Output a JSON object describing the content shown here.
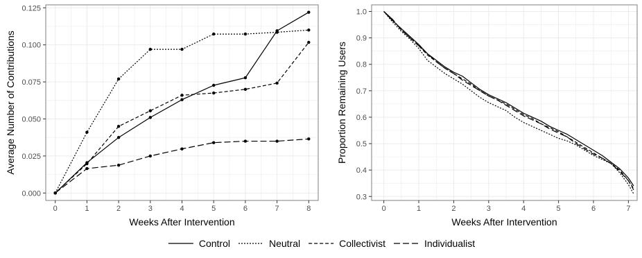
{
  "chart_data": [
    {
      "type": "line",
      "xlabel": "Weeks After Intervention",
      "ylabel": "Average Number of Contributions",
      "xlim": [
        -0.3,
        8.3
      ],
      "ylim": [
        -0.005,
        0.127
      ],
      "x_ticks": [
        0,
        1,
        2,
        3,
        4,
        5,
        6,
        7,
        8
      ],
      "x_tick_labels": [
        "0",
        "1",
        "2",
        "3",
        "4",
        "5",
        "6",
        "7",
        "8"
      ],
      "y_ticks": [
        0,
        0.025,
        0.05,
        0.075,
        0.1,
        0.125
      ],
      "y_tick_labels": [
        "0.000",
        "0.025",
        "0.050",
        "0.075",
        "0.100",
        "0.125"
      ],
      "grid": true,
      "markers": true,
      "x": [
        0,
        1,
        2,
        3,
        4,
        5,
        6,
        7,
        8
      ],
      "series": [
        {
          "name": "Control",
          "values": [
            0,
            0.0205,
            0.0375,
            0.051,
            0.063,
            0.0727,
            0.0778,
            0.1095,
            0.122
          ]
        },
        {
          "name": "Neutral",
          "values": [
            0,
            0.041,
            0.077,
            0.097,
            0.097,
            0.1073,
            0.1073,
            0.1085,
            0.11
          ]
        },
        {
          "name": "Collectivist",
          "values": [
            0,
            0.0198,
            0.045,
            0.0555,
            0.066,
            0.0675,
            0.07,
            0.0742,
            0.1017
          ]
        },
        {
          "name": "Individualist",
          "values": [
            0,
            0.0165,
            0.0188,
            0.025,
            0.0298,
            0.034,
            0.035,
            0.035,
            0.0365
          ]
        }
      ]
    },
    {
      "type": "line",
      "xlabel": "Weeks After Intervention",
      "ylabel": "Proportion Remaining Users",
      "xlim": [
        -0.35,
        7.25
      ],
      "ylim": [
        0.285,
        1.025
      ],
      "x_ticks": [
        0,
        1,
        2,
        3,
        4,
        5,
        6,
        7
      ],
      "x_tick_labels": [
        "0",
        "1",
        "2",
        "3",
        "4",
        "5",
        "6",
        "7"
      ],
      "y_ticks": [
        0.3,
        0.4,
        0.5,
        0.6,
        0.7,
        0.8,
        0.9,
        1.0
      ],
      "y_tick_labels": [
        "0.3",
        "0.4",
        "0.5",
        "0.6",
        "0.7",
        "0.8",
        "0.9",
        "1.0"
      ],
      "grid": true,
      "markers": false,
      "series": [
        {
          "name": "Control",
          "x": [
            0,
            0.25,
            0.5,
            0.75,
            1,
            1.25,
            1.5,
            1.75,
            2,
            2.25,
            2.5,
            2.75,
            3,
            3.25,
            3.5,
            3.75,
            4,
            4.25,
            4.5,
            4.75,
            5,
            5.25,
            5.5,
            5.75,
            6,
            6.25,
            6.5,
            6.75,
            7,
            7.15
          ],
          "values": [
            1.0,
            0.965,
            0.935,
            0.905,
            0.875,
            0.84,
            0.815,
            0.79,
            0.77,
            0.755,
            0.73,
            0.705,
            0.685,
            0.67,
            0.655,
            0.635,
            0.615,
            0.6,
            0.585,
            0.565,
            0.55,
            0.535,
            0.515,
            0.495,
            0.475,
            0.455,
            0.43,
            0.405,
            0.37,
            0.34
          ]
        },
        {
          "name": "Neutral",
          "x": [
            0,
            0.25,
            0.5,
            0.75,
            1,
            1.25,
            1.5,
            1.75,
            2,
            2.25,
            2.5,
            2.75,
            3,
            3.25,
            3.5,
            3.75,
            4,
            4.25,
            4.5,
            4.75,
            5,
            5.25,
            5.5,
            5.75,
            6,
            6.25,
            6.5,
            6.75,
            7,
            7.15
          ],
          "values": [
            1.0,
            0.96,
            0.925,
            0.895,
            0.86,
            0.815,
            0.79,
            0.765,
            0.745,
            0.725,
            0.7,
            0.675,
            0.655,
            0.64,
            0.625,
            0.6,
            0.58,
            0.565,
            0.55,
            0.535,
            0.52,
            0.51,
            0.495,
            0.475,
            0.455,
            0.44,
            0.425,
            0.39,
            0.345,
            0.31
          ]
        },
        {
          "name": "Collectivist",
          "x": [
            0,
            0.25,
            0.5,
            0.75,
            1,
            1.25,
            1.5,
            1.75,
            2,
            2.25,
            2.5,
            2.75,
            3,
            3.25,
            3.5,
            3.75,
            4,
            4.25,
            4.5,
            4.75,
            5,
            5.25,
            5.5,
            5.75,
            6,
            6.25,
            6.5,
            6.75,
            7,
            7.15
          ],
          "values": [
            1.0,
            0.97,
            0.93,
            0.9,
            0.87,
            0.835,
            0.81,
            0.785,
            0.765,
            0.745,
            0.725,
            0.7,
            0.68,
            0.665,
            0.65,
            0.63,
            0.61,
            0.595,
            0.575,
            0.56,
            0.545,
            0.525,
            0.505,
            0.485,
            0.465,
            0.445,
            0.425,
            0.4,
            0.36,
            0.33
          ]
        },
        {
          "name": "Individualist",
          "x": [
            0,
            0.25,
            0.5,
            0.75,
            1,
            1.25,
            1.5,
            1.75,
            2,
            2.25,
            2.5,
            2.75,
            3,
            3.25,
            3.5,
            3.75,
            4,
            4.25,
            4.5,
            4.75,
            5,
            5.25,
            5.5,
            5.75,
            6,
            6.25,
            6.5,
            6.75,
            7,
            7.15
          ],
          "values": [
            1.0,
            0.97,
            0.93,
            0.9,
            0.87,
            0.84,
            0.81,
            0.785,
            0.765,
            0.74,
            0.72,
            0.7,
            0.68,
            0.665,
            0.645,
            0.625,
            0.605,
            0.59,
            0.575,
            0.555,
            0.54,
            0.525,
            0.5,
            0.48,
            0.46,
            0.445,
            0.425,
            0.395,
            0.36,
            0.325
          ]
        }
      ]
    }
  ],
  "legend": {
    "position": "bottom",
    "items": [
      {
        "label": "Control",
        "dash": "solid"
      },
      {
        "label": "Neutral",
        "dash": "dotted"
      },
      {
        "label": "Collectivist",
        "dash": "dashed"
      },
      {
        "label": "Individualist",
        "dash": "long-dashed"
      }
    ]
  },
  "colors": {
    "line": "#000000",
    "grid": "#ebebeb",
    "panel_border": "#7f7f7f",
    "tick_text": "#4d4d4d"
  }
}
